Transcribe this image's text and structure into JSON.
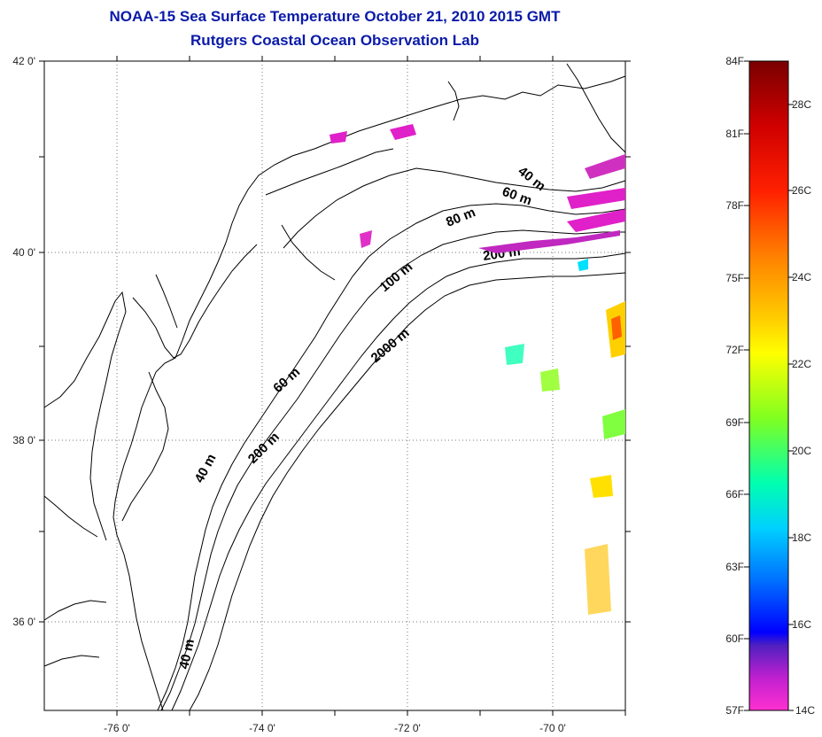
{
  "title": {
    "line1": "NOAA-15 Sea Surface Temperature October 21, 2010 2015 GMT",
    "line2": "Rutgers Coastal Ocean Observation Lab"
  },
  "map": {
    "lon_range": [
      -77,
      -69
    ],
    "lat_range": [
      35.2,
      42
    ],
    "x_ticks": [
      "-76 0'",
      "-74 0'",
      "-72 0'",
      "-70 0'"
    ],
    "y_ticks": [
      "42 0'",
      "40 0'",
      "38 0'",
      "36 0'"
    ],
    "grid": "dotted",
    "contour_labels": [
      "40 m",
      "60 m",
      "80 m",
      "200 m",
      "100 m",
      "2000 m",
      "60 m",
      "40 m",
      "200 m",
      "40 m"
    ]
  },
  "colorbar": {
    "f_labels": [
      "84F",
      "81F",
      "78F",
      "75F",
      "72F",
      "69F",
      "66F",
      "63F",
      "60F",
      "57F"
    ],
    "c_labels": [
      "28C",
      "26C",
      "24C",
      "22C",
      "20C",
      "18C",
      "16C",
      "14C"
    ],
    "colors": [
      "#800000",
      "#ff0000",
      "#ff8000",
      "#ffff00",
      "#80ff00",
      "#00ffc0",
      "#00a0ff",
      "#0000ff",
      "#8020c0",
      "#ff20d0"
    ]
  }
}
